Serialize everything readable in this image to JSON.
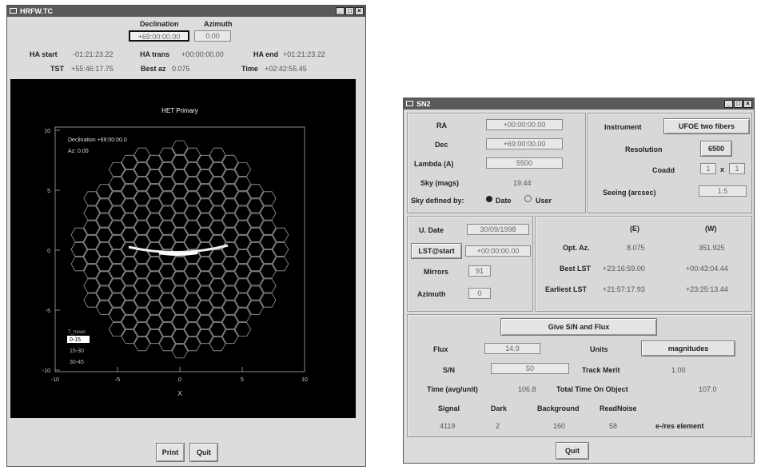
{
  "win1": {
    "title": "HRFW.TC",
    "minimize": "_",
    "restore": "□",
    "close": "×",
    "declination_label": "Declination",
    "azimuth_label": "Azimuth",
    "declination_value": "+69:00:00.00",
    "azimuth_value": "0.00",
    "ha_start_label": "HA start",
    "ha_start_value": "-01:21:23.22",
    "ha_trans_label": "HA trans",
    "ha_trans_value": "+00:00:00.00",
    "ha_end_label": "HA end",
    "ha_end_value": "+01:21:23.22",
    "tst_label": "TST",
    "tst_value": "+55:46:17.75",
    "best_az_label": "Best az",
    "best_az_value": "0.075",
    "time_label": "Time",
    "time_value": "+02:42:55.45",
    "plot_title": "HET Primary",
    "plot_dec_text": "Declination +69:00:00.0",
    "plot_az_text": "Az:   0.00",
    "legend_header": "T_travel",
    "legend_items": [
      "0-15",
      "15-30",
      "30-45"
    ],
    "x_axis_label": "X",
    "x_ticks": [
      "-10",
      "-5",
      "0",
      "5",
      "10"
    ],
    "y_ticks": [
      "10",
      "5",
      "0",
      "-5",
      "-10"
    ],
    "print_button": "Print",
    "quit_button": "Quit"
  },
  "win2": {
    "title": "SN2",
    "minimize": "_",
    "restore": "□",
    "close": "×",
    "ra_label": "RA",
    "ra_value": "+00:00:00.00",
    "dec_label": "Dec",
    "dec_value": "+69:00:00.00",
    "lambda_label": "Lambda (A)",
    "lambda_value": "5500",
    "sky_label": "Sky (mags)",
    "sky_value": "19.44",
    "sky_defined_label": "Sky defined by:",
    "sky_opt_date": "Date",
    "sky_opt_user": "User",
    "instrument_label": "Instrument",
    "instrument_value": "UFOE two fibers",
    "resolution_label": "Resolution",
    "resolution_value": "6500",
    "coadd_label": "Coadd",
    "coadd_x": "1",
    "coadd_sep": "x",
    "coadd_y": "1",
    "seeing_label": "Seeing (arcsec)",
    "seeing_value": "1.5",
    "ut_date_label": "U. Date",
    "ut_date_value": "30/09/1998",
    "lst_start_label": "LST@start",
    "lst_start_value": "+00:00:00.00",
    "mirrors_label": "Mirrors",
    "mirrors_value": "91",
    "azimuth_label": "Azimuth",
    "azimuth_value": "0",
    "col_e": "(E)",
    "col_w": "(W)",
    "opt_az_label": "Opt. Az.",
    "opt_az_e": "8.075",
    "opt_az_w": "351.925",
    "best_lst_label": "Best LST",
    "best_lst_e": "+23:16:59.00",
    "best_lst_w": "+00:43:04.44",
    "earliest_lst_label": "Earliest LST",
    "earliest_lst_e": "+21:57:17.93",
    "earliest_lst_w": "+23:25:13.44",
    "give_button": "Give S/N and Flux",
    "flux_label": "Flux",
    "flux_value": "14.9",
    "units_label": "Units",
    "units_value": "magnitudes",
    "sn_label": "S/N",
    "sn_value": "50",
    "track_label": "Track Merit",
    "track_value": "1.00",
    "time_avg_label": "Time (avg/unit)",
    "time_avg_value": "106.8",
    "total_time_label": "Total Time On Object",
    "total_time_value": "107.0",
    "signal_label": "Signal",
    "dark_label": "Dark",
    "bg_label": "Background",
    "rn_label": "ReadNoise",
    "signal_value": "4119",
    "dark_value": "2",
    "bg_value": "160",
    "rn_value": "58",
    "eres_label": "e-/res element",
    "quit_button": "Quit"
  }
}
